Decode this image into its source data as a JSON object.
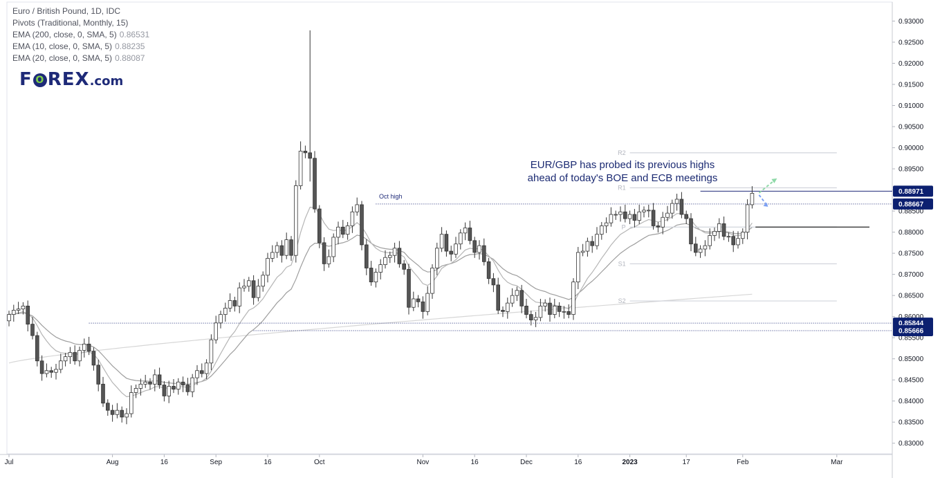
{
  "legend": {
    "title": "Euro / British Pound, 1D, IDC",
    "pivots": "Pivots (Traditional, Monthly, 15)",
    "ema200": "EMA (200, close, 0, SMA, 5)",
    "ema200_value": "0.86531",
    "ema10": "EMA (10, close, 0, SMA, 5)",
    "ema10_value": "0.88235",
    "ema20": "EMA (20, close, 0, SMA, 5)",
    "ema20_value": "0.88087"
  },
  "logo": {
    "part1": "F",
    "part2": "O",
    "part3": "REX",
    "part4": ".com"
  },
  "annotation": {
    "line1": "EUR/GBP has probed its previous highs",
    "line2": "ahead of today's BOE and ECB meetings"
  },
  "oct_high_label": "Oct high",
  "colors": {
    "axis_label_bg": "#0c2070",
    "ema200": "#d6d6d6",
    "ema_short": "#9e9e9e",
    "arrow_up": "#8fd9a8",
    "arrow_down": "#7b9ff2",
    "candle_up": "#ffffff",
    "candle_down": "#555555"
  },
  "chart_data": {
    "type": "candlestick",
    "title": "Euro / British Pound, 1D, IDC",
    "ylim": [
      0.8275,
      0.9345
    ],
    "y_ticks": [
      "0.83000",
      "0.83500",
      "0.84000",
      "0.84500",
      "0.85000",
      "0.85500",
      "0.86000",
      "0.86500",
      "0.87000",
      "0.87500",
      "0.88000",
      "0.88500",
      "0.89000",
      "0.89500",
      "0.90000",
      "0.90500",
      "0.91000",
      "0.91500",
      "0.92000",
      "0.92500",
      "0.93000"
    ],
    "x_ticks": [
      {
        "label": "Jul",
        "bar": 0
      },
      {
        "label": "Aug",
        "bar": 22
      },
      {
        "label": "16",
        "bar": 33
      },
      {
        "label": "Sep",
        "bar": 44
      },
      {
        "label": "16",
        "bar": 55
      },
      {
        "label": "Oct",
        "bar": 66
      },
      {
        "label": "Nov",
        "bar": 88
      },
      {
        "label": "16",
        "bar": 99
      },
      {
        "label": "Dec",
        "bar": 110
      },
      {
        "label": "16",
        "bar": 121
      },
      {
        "label": "2023",
        "bar": 132,
        "bold": true
      },
      {
        "label": "17",
        "bar": 144
      },
      {
        "label": "Feb",
        "bar": 156
      },
      {
        "label": "Mar",
        "bar": 176
      }
    ],
    "closes": [
      0.8605,
      0.8615,
      0.8618,
      0.8625,
      0.8582,
      0.8555,
      0.8495,
      0.8465,
      0.8472,
      0.8468,
      0.8475,
      0.8495,
      0.8505,
      0.8515,
      0.8495,
      0.852,
      0.8535,
      0.8518,
      0.8485,
      0.844,
      0.8395,
      0.8378,
      0.8368,
      0.8378,
      0.8362,
      0.837,
      0.842,
      0.843,
      0.844,
      0.8445,
      0.844,
      0.8462,
      0.8438,
      0.8412,
      0.8435,
      0.8428,
      0.8445,
      0.8438,
      0.8422,
      0.8455,
      0.8472,
      0.8465,
      0.849,
      0.8545,
      0.8585,
      0.8605,
      0.862,
      0.8638,
      0.8625,
      0.8668,
      0.8672,
      0.8685,
      0.8645,
      0.8672,
      0.8698,
      0.8738,
      0.8752,
      0.8768,
      0.8745,
      0.8782,
      0.8745,
      0.891,
      0.8992,
      0.8988,
      0.8975,
      0.8855,
      0.8775,
      0.8725,
      0.8742,
      0.8788,
      0.8812,
      0.8795,
      0.8815,
      0.8848,
      0.8865,
      0.877,
      0.8715,
      0.8682,
      0.8705,
      0.8723,
      0.874,
      0.8745,
      0.8762,
      0.8725,
      0.8712,
      0.8622,
      0.8642,
      0.8635,
      0.8612,
      0.8655,
      0.8715,
      0.8762,
      0.8795,
      0.8755,
      0.8748,
      0.8772,
      0.8798,
      0.881,
      0.878,
      0.8752,
      0.8768,
      0.873,
      0.869,
      0.8675,
      0.8615,
      0.8612,
      0.8632,
      0.865,
      0.8662,
      0.8625,
      0.8605,
      0.8592,
      0.8598,
      0.8625,
      0.8632,
      0.8605,
      0.8625,
      0.8612,
      0.8612,
      0.8605,
      0.8682,
      0.8752,
      0.8755,
      0.8778,
      0.8768,
      0.8795,
      0.8815,
      0.8822,
      0.8842,
      0.8842,
      0.8848,
      0.8832,
      0.8842,
      0.8828,
      0.8848,
      0.8852,
      0.8852,
      0.8815,
      0.8812,
      0.8835,
      0.8845,
      0.8868,
      0.8878,
      0.8842,
      0.8832,
      0.8772,
      0.8752,
      0.876,
      0.8768,
      0.8792,
      0.8802,
      0.882,
      0.879,
      0.879,
      0.877,
      0.8785,
      0.88,
      0.8865,
      0.8892
    ],
    "series": [
      {
        "name": "EMA (200, close, 0, SMA, 5)",
        "last": 0.86531
      },
      {
        "name": "EMA (10, close, 0, SMA, 5)",
        "last": 0.88235
      },
      {
        "name": "EMA (20, close, 0, SMA, 5)",
        "last": 0.88087
      }
    ],
    "pivot_levels": [
      {
        "name": "R2",
        "value": 0.8988
      },
      {
        "name": "R1",
        "value": 0.8905
      },
      {
        "name": "P",
        "value": 0.8812
      },
      {
        "name": "S1",
        "value": 0.8725
      },
      {
        "name": "S2",
        "value": 0.8637
      }
    ],
    "price_labels": [
      "0.88971",
      "0.88667",
      "0.85844",
      "0.85666"
    ],
    "horizontal_lines": [
      {
        "label": "0.88971",
        "value": 0.8897,
        "style": "solid"
      },
      {
        "label": "0.88667",
        "value": 0.88667,
        "style": "dotted"
      },
      {
        "label": "0.85844",
        "value": 0.85844,
        "style": "dotted"
      },
      {
        "label": "0.85666",
        "value": 0.85666,
        "style": "dotted"
      }
    ]
  }
}
